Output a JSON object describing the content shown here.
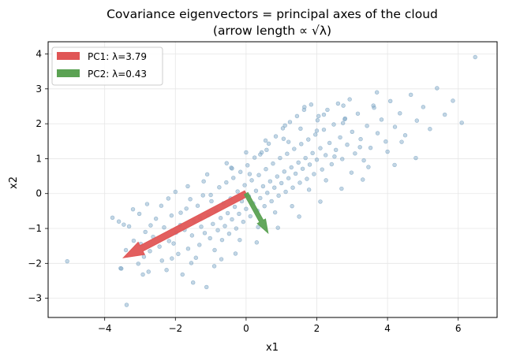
{
  "chart_data": {
    "type": "scatter",
    "title": [
      "Covariance eigenvectors = principal axes of the cloud",
      "(arrow length ∝ √λ)"
    ],
    "xlabel": "x1",
    "ylabel": "x2",
    "xlim": [
      -5.6,
      7.1
    ],
    "ylim": [
      -3.55,
      4.35
    ],
    "xticks": [
      -4,
      -2,
      0,
      2,
      4,
      6
    ],
    "yticks": [
      -3,
      -2,
      -1,
      0,
      1,
      2,
      3,
      4
    ],
    "xtick_labels": [
      "−4",
      "−2",
      "0",
      "2",
      "4",
      "6"
    ],
    "ytick_labels": [
      "−3",
      "−2",
      "−1",
      "0",
      "1",
      "2",
      "3",
      "4"
    ],
    "grid": true,
    "legend_position": "top-left",
    "point_color": "#7ba4c4",
    "points": [
      [
        -5.06,
        -1.94
      ],
      [
        -3.78,
        -0.69
      ],
      [
        -3.55,
        -2.14
      ],
      [
        -3.53,
        -2.15
      ],
      [
        -3.46,
        -0.89
      ],
      [
        -3.38,
        -3.19
      ],
      [
        -3.31,
        -0.94
      ],
      [
        -3.18,
        -1.35
      ],
      [
        -3.05,
        -2.01
      ],
      [
        -3.02,
        -0.58
      ],
      [
        -2.92,
        -2.32
      ],
      [
        -2.89,
        -1.81
      ],
      [
        -2.85,
        -1.1
      ],
      [
        -2.76,
        -2.24
      ],
      [
        -2.72,
        -1.65
      ],
      [
        -2.63,
        -1.24
      ],
      [
        -2.55,
        -0.72
      ],
      [
        -2.45,
        -1.52
      ],
      [
        -2.38,
        -1.92
      ],
      [
        -2.32,
        -0.97
      ],
      [
        -2.25,
        -2.19
      ],
      [
        -2.18,
        -1.36
      ],
      [
        -2.11,
        -0.63
      ],
      [
        -2.05,
        -1.43
      ],
      [
        -1.98,
        -1.12
      ],
      [
        -1.92,
        -1.73
      ],
      [
        -1.86,
        -0.9
      ],
      [
        -1.8,
        -2.32
      ],
      [
        -1.74,
        -1.04
      ],
      [
        -1.69,
        -0.43
      ],
      [
        -1.64,
        -1.58
      ],
      [
        -1.58,
        -0.16
      ],
      [
        -1.53,
        -1.2
      ],
      [
        -1.47,
        -0.78
      ],
      [
        -1.42,
        -1.84
      ],
      [
        -1.37,
        -0.35
      ],
      [
        -1.32,
        -1.47
      ],
      [
        -1.27,
        -0.95
      ],
      [
        -1.22,
        -0.05
      ],
      [
        -1.17,
        -1.13
      ],
      [
        -1.12,
        -2.68
      ],
      [
        -1.07,
        -0.62
      ],
      [
        -1.02,
        -1.28
      ],
      [
        -0.98,
        -0.22
      ],
      [
        -0.94,
        -0.87
      ],
      [
        -0.89,
        -1.62
      ],
      [
        -0.85,
        -0.48
      ],
      [
        -0.8,
        -1.05
      ],
      [
        -0.76,
        0.18
      ],
      [
        -0.72,
        -0.7
      ],
      [
        -0.68,
        -1.33
      ],
      [
        -0.64,
        -0.28
      ],
      [
        -0.6,
        -0.93
      ],
      [
        -0.56,
        0.32
      ],
      [
        -0.52,
        -0.56
      ],
      [
        -0.48,
        -1.15
      ],
      [
        -0.44,
        -0.14
      ],
      [
        -0.4,
        -0.74
      ],
      [
        -0.36,
        0.45
      ],
      [
        -0.32,
        -0.38
      ],
      [
        -0.28,
        -1.0
      ],
      [
        -0.24,
        0.06
      ],
      [
        -0.2,
        -0.58
      ],
      [
        -0.16,
        0.62
      ],
      [
        -0.12,
        -0.22
      ],
      [
        -0.08,
        -0.81
      ],
      [
        -0.04,
        0.24
      ],
      [
        0.0,
        -0.44
      ],
      [
        0.04,
        0.81
      ],
      [
        0.08,
        -0.08
      ],
      [
        0.12,
        -0.65
      ],
      [
        0.16,
        0.38
      ],
      [
        0.2,
        -0.28
      ],
      [
        0.24,
        1.03
      ],
      [
        0.28,
        0.08
      ],
      [
        0.32,
        -0.49
      ],
      [
        0.36,
        0.53
      ],
      [
        0.4,
        -0.13
      ],
      [
        0.44,
        1.18
      ],
      [
        0.48,
        0.21
      ],
      [
        0.52,
        -0.36
      ],
      [
        0.56,
        0.7
      ],
      [
        0.6,
        0.02
      ],
      [
        0.64,
        1.43
      ],
      [
        0.68,
        0.35
      ],
      [
        0.72,
        -0.22
      ],
      [
        0.76,
        0.86
      ],
      [
        0.8,
        0.17
      ],
      [
        0.84,
        1.64
      ],
      [
        0.88,
        0.49
      ],
      [
        0.92,
        -0.06
      ],
      [
        0.96,
        1.02
      ],
      [
        1.0,
        0.3
      ],
      [
        1.04,
        1.87
      ],
      [
        1.08,
        0.63
      ],
      [
        1.12,
        0.05
      ],
      [
        1.16,
        1.14
      ],
      [
        1.2,
        0.44
      ],
      [
        1.24,
        2.05
      ],
      [
        1.28,
        0.75
      ],
      [
        1.32,
        0.17
      ],
      [
        1.36,
        1.28
      ],
      [
        1.4,
        0.57
      ],
      [
        1.44,
        2.22
      ],
      [
        1.48,
        0.89
      ],
      [
        1.52,
        0.31
      ],
      [
        1.56,
        1.42
      ],
      [
        1.6,
        0.71
      ],
      [
        1.64,
        2.4
      ],
      [
        1.68,
        1.02
      ],
      [
        1.72,
        0.42
      ],
      [
        1.76,
        1.55
      ],
      [
        1.8,
        0.83
      ],
      [
        1.84,
        2.55
      ],
      [
        1.88,
        1.16
      ],
      [
        1.92,
        0.56
      ],
      [
        1.96,
        1.69
      ],
      [
        2.0,
        0.97
      ],
      [
        2.05,
        2.22
      ],
      [
        2.1,
        1.3
      ],
      [
        2.15,
        0.69
      ],
      [
        2.2,
        1.83
      ],
      [
        2.25,
        1.1
      ],
      [
        2.3,
        2.4
      ],
      [
        2.36,
        1.45
      ],
      [
        2.42,
        0.84
      ],
      [
        2.48,
        1.98
      ],
      [
        2.54,
        1.25
      ],
      [
        2.6,
        2.58
      ],
      [
        2.66,
        1.61
      ],
      [
        2.72,
        0.99
      ],
      [
        2.79,
        2.13
      ],
      [
        2.86,
        1.4
      ],
      [
        2.93,
        2.7
      ],
      [
        3.0,
        1.77
      ],
      [
        3.08,
        1.15
      ],
      [
        3.16,
        2.29
      ],
      [
        3.24,
        1.56
      ],
      [
        3.33,
        0.95
      ],
      [
        3.42,
        1.94
      ],
      [
        3.52,
        1.31
      ],
      [
        3.62,
        2.46
      ],
      [
        3.72,
        1.73
      ],
      [
        3.83,
        2.12
      ],
      [
        3.95,
        1.49
      ],
      [
        4.08,
        2.65
      ],
      [
        4.21,
        1.91
      ],
      [
        4.35,
        2.3
      ],
      [
        4.5,
        1.67
      ],
      [
        4.66,
        2.83
      ],
      [
        4.83,
        2.09
      ],
      [
        5.01,
        2.48
      ],
      [
        5.2,
        1.85
      ],
      [
        5.4,
        3.02
      ],
      [
        5.62,
        2.26
      ],
      [
        5.85,
        2.66
      ],
      [
        6.1,
        2.03
      ],
      [
        6.48,
        3.91
      ],
      [
        -3.4,
        -1.62
      ],
      [
        -3.2,
        -0.45
      ],
      [
        -2.98,
        -1.44
      ],
      [
        -2.7,
        -0.91
      ],
      [
        -2.4,
        -0.35
      ],
      [
        -2.1,
        -1.86
      ],
      [
        -1.85,
        -0.55
      ],
      [
        -1.55,
        -1.99
      ],
      [
        -1.3,
        -0.7
      ],
      [
        -1.0,
        -0.04
      ],
      [
        -0.7,
        -1.88
      ],
      [
        -0.42,
        0.74
      ],
      [
        -0.18,
        -1.33
      ],
      [
        0.1,
        0.56
      ],
      [
        0.34,
        -0.96
      ],
      [
        0.58,
        1.25
      ],
      [
        0.82,
        -0.54
      ],
      [
        1.06,
        1.57
      ],
      [
        1.3,
        -0.36
      ],
      [
        1.54,
        1.86
      ],
      [
        1.78,
        0.11
      ],
      [
        2.02,
        2.1
      ],
      [
        2.26,
        0.38
      ],
      [
        2.5,
        1.06
      ],
      [
        2.74,
        2.02
      ],
      [
        2.98,
        0.6
      ],
      [
        3.22,
        1.33
      ],
      [
        3.46,
        0.76
      ],
      [
        3.7,
        2.9
      ],
      [
        4.0,
        1.2
      ],
      [
        4.4,
        1.48
      ],
      [
        4.8,
        1.02
      ],
      [
        -2.2,
        -0.14
      ],
      [
        -1.65,
        0.21
      ],
      [
        -1.1,
        0.55
      ],
      [
        -0.55,
        0.87
      ],
      [
        0.0,
        1.18
      ],
      [
        0.55,
        1.52
      ],
      [
        1.1,
        1.95
      ],
      [
        1.65,
        2.48
      ],
      [
        2.2,
        2.26
      ],
      [
        2.75,
        2.52
      ],
      [
        -3.6,
        -0.8
      ],
      [
        -2.8,
        -0.3
      ],
      [
        -2.0,
        0.05
      ],
      [
        -1.2,
        0.35
      ],
      [
        -0.4,
        0.72
      ],
      [
        0.4,
        1.12
      ],
      [
        1.2,
        1.48
      ],
      [
        2.0,
        1.8
      ],
      [
        2.8,
        2.15
      ],
      [
        3.6,
        2.52
      ],
      [
        -1.5,
        -2.55
      ],
      [
        -0.9,
        -2.08
      ],
      [
        -0.3,
        -1.72
      ],
      [
        0.3,
        -1.4
      ],
      [
        0.9,
        -0.98
      ],
      [
        1.5,
        -0.66
      ],
      [
        2.1,
        -0.23
      ],
      [
        2.7,
        0.14
      ],
      [
        3.3,
        0.4
      ],
      [
        4.2,
        0.82
      ]
    ],
    "arrows": [
      {
        "name": "PC1: λ=3.79",
        "color": "#e05656",
        "start": [
          0,
          0
        ],
        "end": [
          -3.47,
          -1.84
        ],
        "width": 0.18
      },
      {
        "name": "PC2: λ=0.43",
        "color": "#5ba253",
        "start": [
          0,
          0
        ],
        "end": [
          0.62,
          -1.13
        ],
        "width": 0.12
      }
    ]
  }
}
